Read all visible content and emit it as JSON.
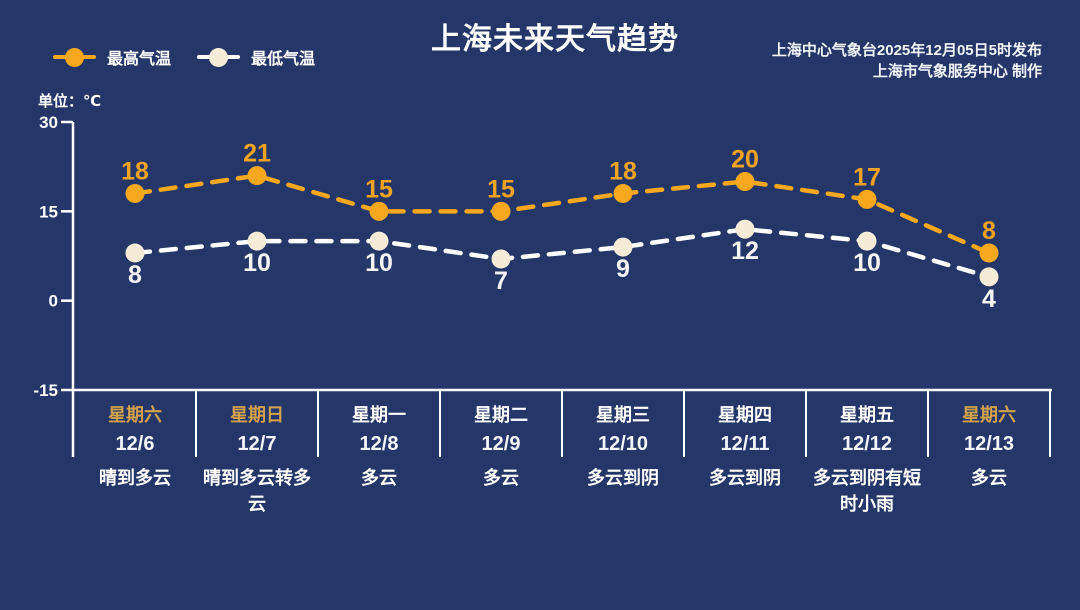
{
  "title": "上海未来天气趋势",
  "source_line1": "上海中心气象台2025年12月05日5时发布",
  "source_line2": "上海市气象服务中心  制作",
  "unit_label": "单位：℃",
  "legend": {
    "high_label": "最高气温",
    "low_label": "最低气温"
  },
  "colors": {
    "background": "#243768",
    "high": "#f5a71e",
    "high_label": "#f0a322",
    "low_line": "#ffffff",
    "low_marker": "#f5ebd7",
    "low_label": "#f5f5f5",
    "axis": "#ffffff",
    "weekend_day": "#d2a14c",
    "weekday": "#ffffff"
  },
  "chart_data": {
    "type": "line",
    "title": "上海未来天气趋势",
    "ylabel": "单位：℃",
    "yticks": [
      30,
      15,
      0,
      -15
    ],
    "ylim": [
      -15,
      30
    ],
    "grid": false,
    "legend_position": "top-left",
    "categories": [
      "12/6",
      "12/7",
      "12/8",
      "12/9",
      "12/10",
      "12/11",
      "12/12",
      "12/13"
    ],
    "series": [
      {
        "name": "最高气温",
        "values": [
          18,
          21,
          15,
          15,
          18,
          20,
          17,
          8
        ]
      },
      {
        "name": "最低气温",
        "values": [
          8,
          10,
          10,
          7,
          9,
          12,
          10,
          4
        ]
      }
    ]
  },
  "days": [
    {
      "day": "星期六",
      "date": "12/6",
      "weather": "晴到多云",
      "weekend": true
    },
    {
      "day": "星期日",
      "date": "12/7",
      "weather": "晴到多云转多云",
      "weekend": true
    },
    {
      "day": "星期一",
      "date": "12/8",
      "weather": "多云",
      "weekend": false
    },
    {
      "day": "星期二",
      "date": "12/9",
      "weather": "多云",
      "weekend": false
    },
    {
      "day": "星期三",
      "date": "12/10",
      "weather": "多云到阴",
      "weekend": false
    },
    {
      "day": "星期四",
      "date": "12/11",
      "weather": "多云到阴",
      "weekend": false
    },
    {
      "day": "星期五",
      "date": "12/12",
      "weather": "多云到阴有短时小雨",
      "weekend": false
    },
    {
      "day": "星期六",
      "date": "12/13",
      "weather": "多云",
      "weekend": true
    }
  ]
}
